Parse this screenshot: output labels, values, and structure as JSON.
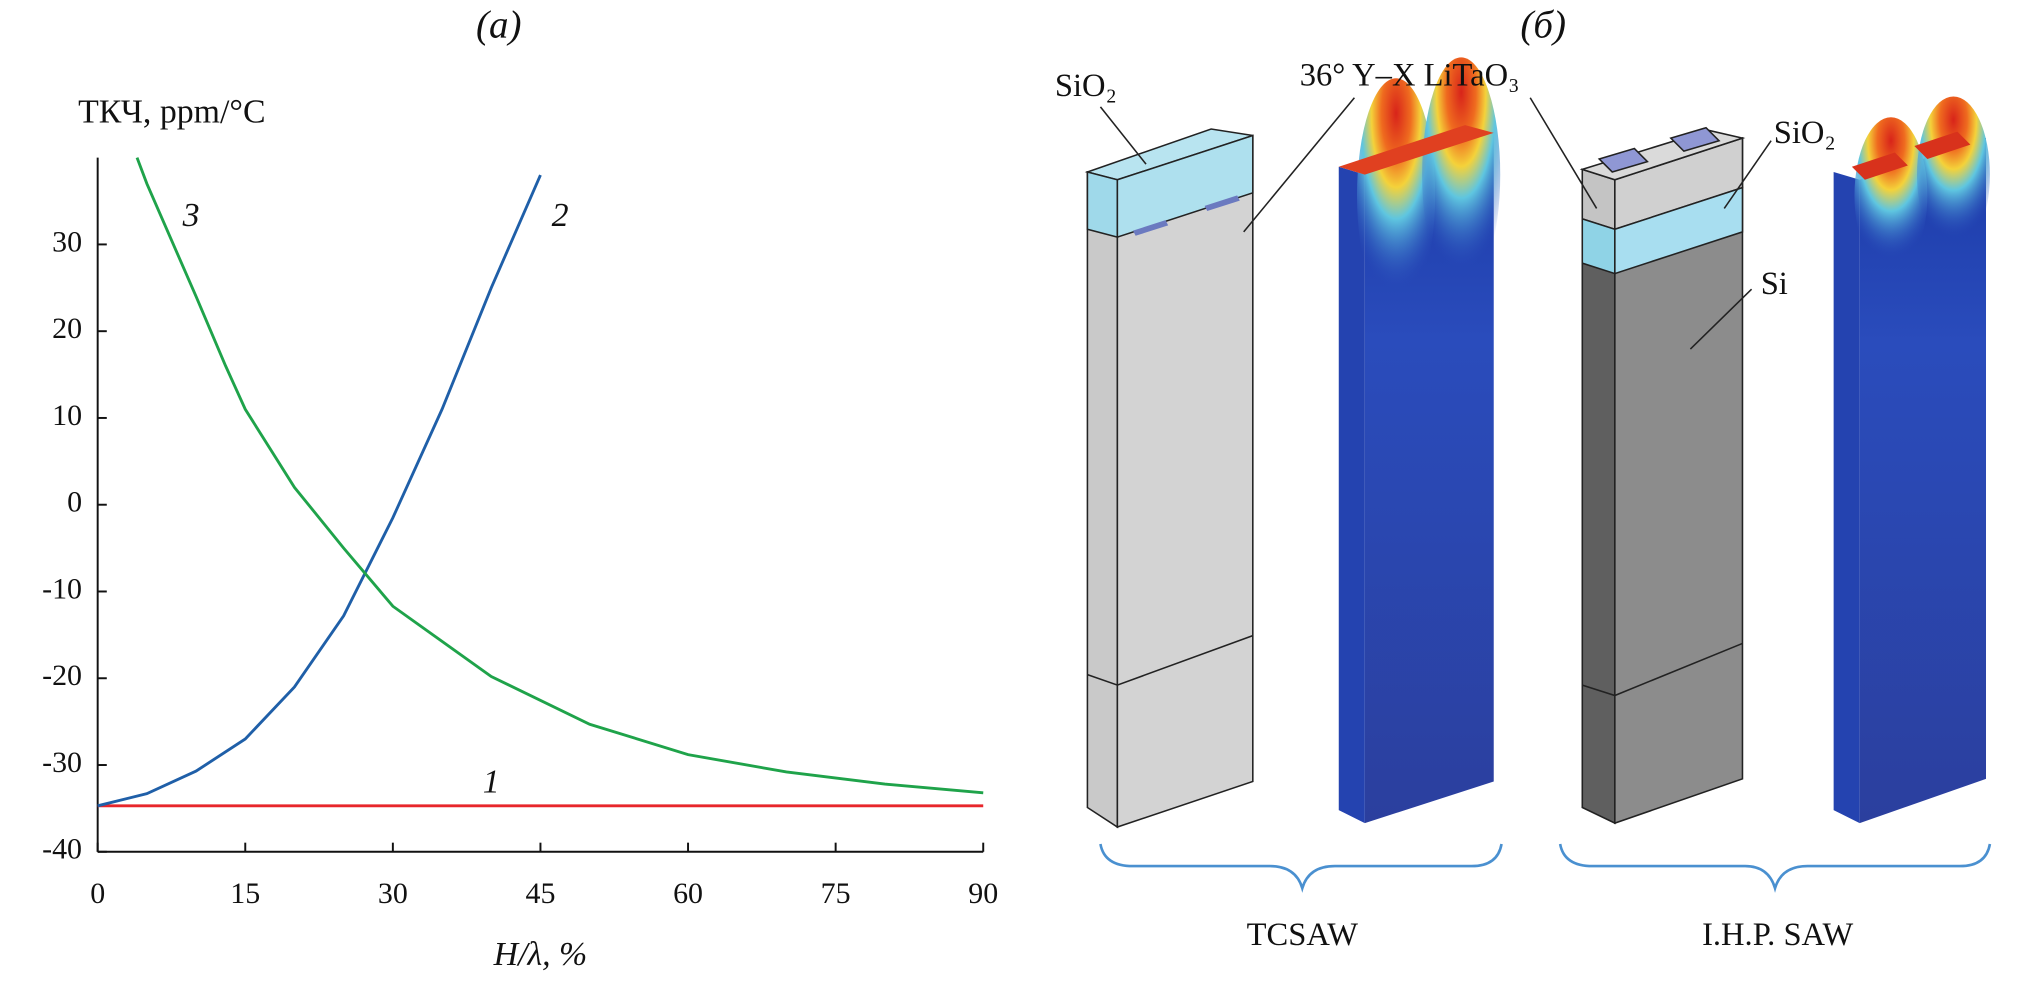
{
  "chart_data": {
    "type": "line",
    "title": "(а)",
    "ylabel": "ТКЧ, ppm/°C",
    "xlabel": "H/λ, %",
    "xlim": [
      0,
      90
    ],
    "xticks": [
      0,
      15,
      30,
      45,
      60,
      75,
      90
    ],
    "ylim": [
      -40,
      40
    ],
    "yticks": [
      -40,
      -30,
      -20,
      -10,
      0,
      10,
      20,
      30
    ],
    "series": [
      {
        "name": "1",
        "color": "#e8262b",
        "x": [
          0,
          90
        ],
        "values": [
          -34.7,
          -34.7
        ]
      },
      {
        "name": "2",
        "color": "#1f5fa8",
        "x": [
          0,
          5,
          10,
          15,
          20,
          25,
          30,
          35,
          40,
          45
        ],
        "values": [
          -34.7,
          -33.3,
          -30.7,
          -27,
          -21,
          -12.8,
          -1.5,
          11,
          25,
          38
        ]
      },
      {
        "name": "3",
        "color": "#1fa34a",
        "x": [
          4,
          5,
          10,
          13,
          15,
          20,
          25,
          30,
          40,
          50,
          60,
          70,
          80,
          90
        ],
        "values": [
          40,
          37,
          24,
          16,
          11,
          2,
          -5,
          -11.7,
          -19.8,
          -25.3,
          -28.8,
          -30.8,
          -32.2,
          -33.2
        ]
      }
    ]
  },
  "diagram": {
    "title": "(б)",
    "labels": {
      "sio2_left": "SiO₂",
      "litao3": "36° Y–X LiTaO₃",
      "sio2_right": "SiO₂",
      "si": "Si"
    },
    "groups": [
      "TCSAW",
      "I.H.P. SAW"
    ]
  }
}
